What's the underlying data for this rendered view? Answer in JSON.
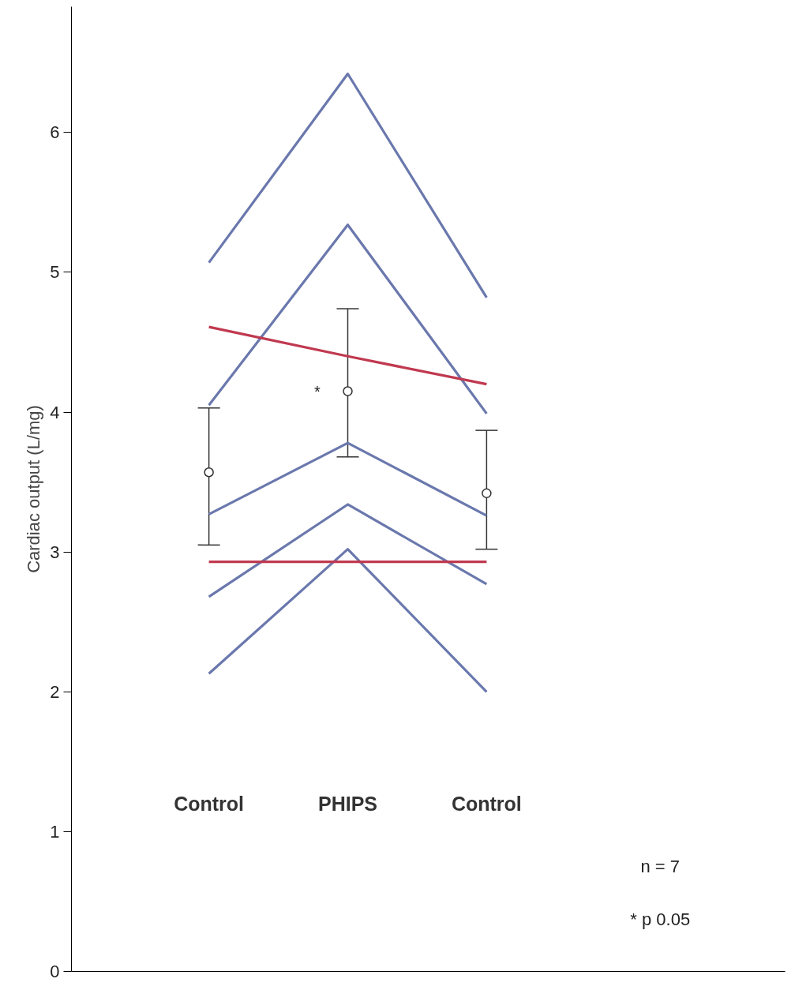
{
  "chart_data": {
    "type": "line",
    "ylabel": "Cardiac output (L/mg)",
    "categories": [
      "Control",
      "PHIPS",
      "Control"
    ],
    "ylim": [
      0,
      6.9
    ],
    "yticks": [
      0,
      1,
      2,
      3,
      4,
      5,
      6
    ],
    "grid": false,
    "marker": "none",
    "line_style": "solid",
    "series": [
      {
        "color": "#6a78ad",
        "values": [
          5.07,
          6.42,
          4.82
        ]
      },
      {
        "color": "#6a78ad",
        "values": [
          4.05,
          5.34,
          3.99
        ]
      },
      {
        "color": "#6a78ad",
        "values": [
          3.27,
          3.78,
          3.26
        ]
      },
      {
        "color": "#6a78ad",
        "values": [
          2.68,
          3.34,
          2.77
        ]
      },
      {
        "color": "#6a78ad",
        "values": [
          2.13,
          3.02,
          2.0
        ]
      },
      {
        "color": "#c0394f",
        "values": [
          4.61,
          4.4,
          4.2
        ]
      },
      {
        "color": "#c0394f",
        "values": [
          2.93,
          2.93,
          2.93
        ]
      },
      {
        "type": "scatter",
        "marker": "circle",
        "color": "#333333",
        "values": [
          3.57,
          4.15,
          3.42
        ],
        "errors": [
          [
            3.05,
            4.03
          ],
          [
            3.68,
            4.74
          ],
          [
            3.02,
            3.87
          ]
        ]
      }
    ],
    "annotations": [
      {
        "text": "*",
        "x": "PHIPS",
        "y": 4.15
      },
      "n = 7",
      "* p 0.05"
    ]
  }
}
